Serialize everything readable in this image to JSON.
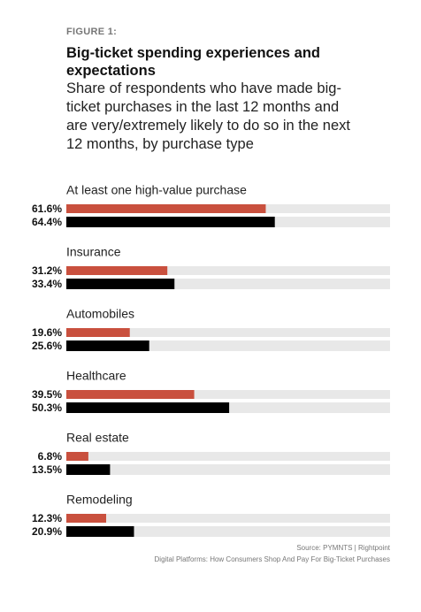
{
  "chart_data": {
    "type": "hbar",
    "figure_label": "FIGURE 1:",
    "title": "Big-ticket spending experiences and expectations",
    "subtitle": "Share of respondents who have made big-ticket purchases in the last 12 months and are very/extremely likely to do so in the next 12 months, by purchase type",
    "categories": [
      "At least one high-value purchase",
      "Insurance",
      "Automobiles",
      "Healthcare",
      "Real estate",
      "Remodeling"
    ],
    "series": [
      {
        "color": "#c9503e",
        "values": [
          61.6,
          31.2,
          19.6,
          39.5,
          6.8,
          12.3
        ],
        "value_labels": [
          "61.6%",
          "31.2%",
          "19.6%",
          "39.5%",
          "6.8%",
          "12.3%"
        ]
      },
      {
        "color": "#000000",
        "values": [
          64.4,
          33.4,
          25.6,
          50.3,
          13.5,
          20.9
        ],
        "value_labels": [
          "64.4%",
          "33.4%",
          "25.6%",
          "50.3%",
          "13.5%",
          "20.9%"
        ]
      }
    ],
    "xlim": [
      0,
      100
    ],
    "source": "Source: PYMNTS  |  Rightpoint",
    "note": "Digital Platforms: How Consumers Shop And Pay For Big-Ticket Purchases"
  }
}
